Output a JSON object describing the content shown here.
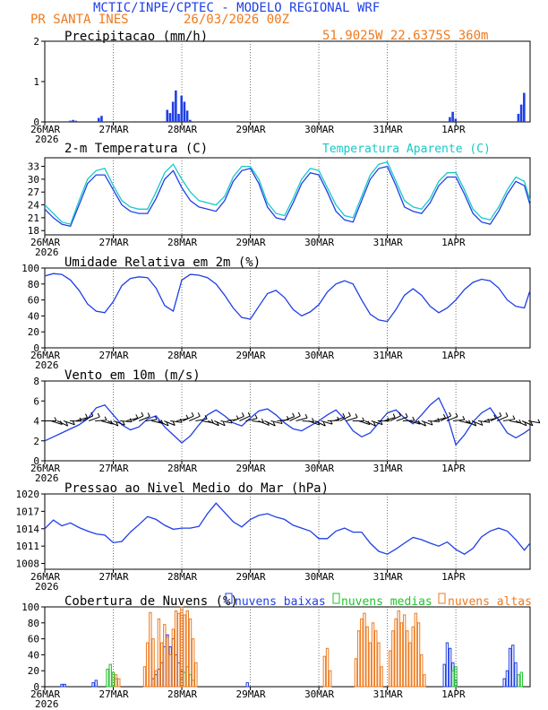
{
  "header": {
    "title": "MCTIC/INPE/CPTEC - MODELO REGIONAL WRF",
    "station": "PR SANTA INES",
    "run": "26/03/2026 00Z",
    "coords": "51.9025W 22.6375S 360m"
  },
  "colors": {
    "blue": "#1f3fe6",
    "orange": "#ee7a1e",
    "cyan": "#19c8c8",
    "green": "#22c22e",
    "black": "#000000"
  },
  "x_axis": {
    "ticks": [
      0,
      24,
      48,
      72,
      96,
      120,
      144
    ],
    "labels": [
      "26MAR",
      "27MAR",
      "28MAR",
      "29MAR",
      "30MAR",
      "31MAR",
      "1APR"
    ],
    "first_year": "2026",
    "range_hours": [
      0,
      170
    ]
  },
  "chart_data": [
    {
      "type": "bar",
      "title": "Precipitacao (mm/h)",
      "ylim": [
        0,
        2
      ],
      "yticks": [
        0,
        1,
        2
      ],
      "x": [
        9,
        10,
        11,
        19,
        20,
        43,
        44,
        45,
        46,
        47,
        48,
        49,
        50,
        51,
        142,
        143,
        144,
        166,
        167,
        168
      ],
      "values": [
        0.03,
        0.05,
        0.03,
        0.1,
        0.15,
        0.3,
        0.22,
        0.5,
        0.78,
        0.2,
        0.65,
        0.5,
        0.28,
        0.05,
        0.12,
        0.25,
        0.08,
        0.2,
        0.43,
        0.72
      ]
    },
    {
      "type": "line",
      "title": "2-m Temperatura (C)",
      "legend": "Temperatura Aparente (C)",
      "ylim": [
        17,
        35
      ],
      "yticks": [
        18,
        21,
        24,
        27,
        30,
        33
      ],
      "series": [
        {
          "name": "2-m Temperatura (C)",
          "color": "blue",
          "x": [
            0,
            3,
            6,
            9,
            12,
            15,
            18,
            21,
            24,
            27,
            30,
            33,
            36,
            39,
            42,
            45,
            48,
            51,
            54,
            57,
            60,
            63,
            66,
            69,
            72,
            75,
            78,
            81,
            84,
            87,
            90,
            93,
            96,
            99,
            102,
            105,
            108,
            111,
            114,
            117,
            120,
            123,
            126,
            129,
            132,
            135,
            138,
            141,
            144,
            147,
            150,
            153,
            156,
            159,
            162,
            165,
            168,
            170
          ],
          "values": [
            23,
            21,
            19.5,
            19,
            24,
            29,
            31,
            31,
            27.5,
            24,
            22.5,
            22,
            22,
            25.5,
            30,
            32,
            28,
            25,
            23.5,
            23,
            22.5,
            25,
            29.5,
            32,
            32.5,
            29,
            23.5,
            21,
            20.5,
            24.5,
            29,
            31.5,
            31,
            27,
            22.5,
            20.5,
            20,
            25,
            30,
            32.5,
            33,
            28.5,
            23.5,
            22.5,
            22,
            24.5,
            28.5,
            30.5,
            30.5,
            26.5,
            22,
            20,
            19.5,
            22.5,
            26.5,
            29.5,
            28.5,
            24
          ]
        },
        {
          "name": "Temperatura Aparente (C)",
          "color": "cyan",
          "x": [
            0,
            3,
            6,
            9,
            12,
            15,
            18,
            21,
            24,
            27,
            30,
            33,
            36,
            39,
            42,
            45,
            48,
            51,
            54,
            57,
            60,
            63,
            66,
            69,
            72,
            75,
            78,
            81,
            84,
            87,
            90,
            93,
            96,
            99,
            102,
            105,
            108,
            111,
            114,
            117,
            120,
            123,
            126,
            129,
            132,
            135,
            138,
            141,
            144,
            147,
            150,
            153,
            156,
            159,
            162,
            165,
            168,
            170
          ],
          "values": [
            24,
            22,
            20,
            19.5,
            25,
            30,
            32,
            32.5,
            28.5,
            25,
            23.5,
            23,
            23,
            27,
            31.5,
            33.5,
            30,
            27,
            25,
            24.5,
            24,
            26,
            30.5,
            33,
            33,
            30,
            24.5,
            22,
            21.5,
            25.5,
            30,
            32.5,
            32,
            28,
            24,
            21.5,
            21,
            26,
            31,
            33.5,
            34,
            29.5,
            25,
            23.5,
            23,
            25.5,
            29.5,
            31.5,
            31.5,
            27.5,
            23,
            21,
            20.5,
            23.5,
            27.5,
            30.5,
            29.5,
            25
          ]
        }
      ]
    },
    {
      "type": "line",
      "title": "Umidade Relativa em 2m (%)",
      "ylim": [
        0,
        100
      ],
      "yticks": [
        0,
        20,
        40,
        60,
        80,
        100
      ],
      "series": [
        {
          "name": "Umidade Relativa",
          "color": "blue",
          "x": [
            0,
            3,
            6,
            9,
            12,
            15,
            18,
            21,
            24,
            27,
            30,
            33,
            36,
            39,
            42,
            45,
            48,
            51,
            54,
            57,
            60,
            63,
            66,
            69,
            72,
            75,
            78,
            81,
            84,
            87,
            90,
            93,
            96,
            99,
            102,
            105,
            108,
            111,
            114,
            117,
            120,
            123,
            126,
            129,
            132,
            135,
            138,
            141,
            144,
            147,
            150,
            153,
            156,
            159,
            162,
            165,
            168,
            170
          ],
          "values": [
            90,
            93,
            92,
            85,
            72,
            55,
            46,
            44,
            58,
            78,
            87,
            89,
            88,
            75,
            53,
            46,
            85,
            92,
            91,
            88,
            80,
            66,
            50,
            38,
            36,
            52,
            68,
            72,
            63,
            48,
            40,
            45,
            54,
            70,
            80,
            84,
            80,
            60,
            42,
            35,
            33,
            48,
            66,
            74,
            66,
            52,
            44,
            50,
            60,
            73,
            82,
            86,
            84,
            75,
            60,
            52,
            50,
            72
          ]
        }
      ]
    },
    {
      "type": "line",
      "title": "Vento em 10m (m/s)",
      "ylim": [
        0,
        8
      ],
      "yticks": [
        0,
        2,
        4,
        6,
        8
      ],
      "series": [
        {
          "name": "Vento em 10m",
          "color": "blue",
          "x": [
            0,
            3,
            6,
            9,
            12,
            15,
            18,
            21,
            24,
            27,
            30,
            33,
            36,
            39,
            42,
            45,
            48,
            51,
            54,
            57,
            60,
            63,
            66,
            69,
            72,
            75,
            78,
            81,
            84,
            87,
            90,
            93,
            96,
            99,
            102,
            105,
            108,
            111,
            114,
            117,
            120,
            123,
            126,
            129,
            132,
            135,
            138,
            141,
            144,
            147,
            150,
            153,
            156,
            159,
            162,
            165,
            168,
            170
          ],
          "values": [
            2,
            2.4,
            2.8,
            3.2,
            3.6,
            4.2,
            5.3,
            5.6,
            4.6,
            3.6,
            3.1,
            3.4,
            4.2,
            4.5,
            3.4,
            2.6,
            1.8,
            2.5,
            3.6,
            4.6,
            5.1,
            4.5,
            3.8,
            3.5,
            4.3,
            5.0,
            5.2,
            4.6,
            3.8,
            3.2,
            3.0,
            3.5,
            4.0,
            4.6,
            5.1,
            4.2,
            3.0,
            2.4,
            2.8,
            3.8,
            4.8,
            5.1,
            4.3,
            3.7,
            4.6,
            5.6,
            6.3,
            4.5,
            1.6,
            2.6,
            3.9,
            4.8,
            5.3,
            4.1,
            2.8,
            2.3,
            2.8,
            3.2
          ]
        }
      ]
    },
    {
      "type": "line",
      "title": "Pressao ao Nivel Medio do Mar (hPa)",
      "ylim": [
        1007,
        1020
      ],
      "yticks": [
        1008,
        1011,
        1014,
        1017,
        1020
      ],
      "series": [
        {
          "name": "Pressao",
          "color": "blue",
          "x": [
            0,
            3,
            6,
            9,
            12,
            15,
            18,
            21,
            24,
            27,
            30,
            33,
            36,
            39,
            42,
            45,
            48,
            51,
            54,
            57,
            60,
            63,
            66,
            69,
            72,
            75,
            78,
            81,
            84,
            87,
            90,
            93,
            96,
            99,
            102,
            105,
            108,
            111,
            114,
            117,
            120,
            123,
            126,
            129,
            132,
            135,
            138,
            141,
            144,
            147,
            150,
            153,
            156,
            159,
            162,
            165,
            168,
            170
          ],
          "values": [
            1014,
            1015.5,
            1014.5,
            1015,
            1014.2,
            1013.6,
            1013.1,
            1012.9,
            1011.6,
            1011.8,
            1013.4,
            1014.7,
            1016.1,
            1015.6,
            1014.6,
            1013.9,
            1014.1,
            1014.1,
            1014.4,
            1016.6,
            1018.4,
            1016.8,
            1015.2,
            1014.3,
            1015.6,
            1016.3,
            1016.6,
            1016,
            1015.6,
            1014.6,
            1014.1,
            1013.6,
            1012.3,
            1012.3,
            1013.6,
            1014.1,
            1013.4,
            1013.4,
            1011.5,
            1010.1,
            1009.6,
            1010.5,
            1011.5,
            1012.5,
            1012.1,
            1011.5,
            1011,
            1011.7,
            1010.4,
            1009.6,
            1010.6,
            1012.6,
            1013.6,
            1014.1,
            1013.6,
            1012.1,
            1010.3,
            1011.5
          ]
        }
      ]
    },
    {
      "type": "bar",
      "title": "Cobertura de Nuvens (%)",
      "ylim": [
        0,
        100
      ],
      "yticks": [
        0,
        20,
        40,
        60,
        80,
        100
      ],
      "legend": [
        "nuvens baixas",
        "nuvens medias",
        "nuvens altas"
      ],
      "series": [
        {
          "name": "nuvens baixas",
          "color": "blue",
          "x": [
            6,
            7,
            17,
            18,
            38,
            39,
            40,
            41,
            42,
            43,
            44,
            45,
            46,
            47,
            48,
            71,
            140,
            141,
            142,
            143,
            144,
            161,
            162,
            163,
            164,
            165
          ],
          "values": [
            3,
            3,
            5,
            8,
            10,
            15,
            22,
            30,
            50,
            65,
            50,
            60,
            40,
            30,
            20,
            5,
            28,
            55,
            48,
            30,
            8,
            10,
            20,
            48,
            52,
            30
          ]
        },
        {
          "name": "nuvens medias",
          "color": "green",
          "x": [
            22,
            23,
            24,
            25,
            48,
            49,
            50,
            51,
            52,
            143,
            144,
            166,
            167
          ],
          "values": [
            22,
            28,
            18,
            10,
            10,
            18,
            25,
            15,
            8,
            20,
            25,
            15,
            18
          ]
        },
        {
          "name": "nuvens altas",
          "color": "orange",
          "x": [
            25,
            26,
            35,
            36,
            37,
            38,
            39,
            40,
            41,
            42,
            43,
            44,
            45,
            46,
            47,
            48,
            49,
            50,
            51,
            52,
            53,
            98,
            99,
            100,
            109,
            110,
            111,
            112,
            113,
            114,
            115,
            116,
            117,
            118,
            121,
            122,
            123,
            124,
            125,
            126,
            127,
            128,
            129,
            130,
            131,
            132,
            133
          ],
          "values": [
            15,
            10,
            25,
            55,
            93,
            60,
            20,
            85,
            55,
            78,
            62,
            40,
            72,
            95,
            92,
            100,
            90,
            95,
            85,
            60,
            30,
            38,
            48,
            20,
            35,
            70,
            85,
            92,
            75,
            55,
            80,
            70,
            55,
            25,
            45,
            70,
            85,
            95,
            80,
            90,
            70,
            55,
            75,
            92,
            80,
            40,
            15
          ]
        }
      ]
    }
  ]
}
